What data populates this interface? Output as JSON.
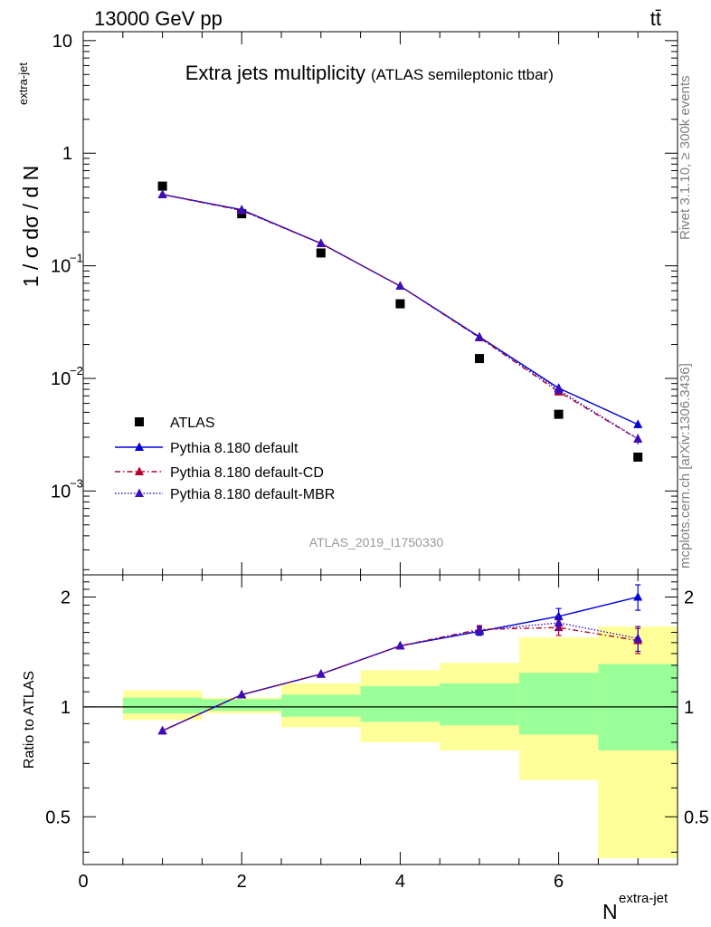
{
  "header": {
    "energy_label": "13000 GeV pp",
    "process_label": "tt̄"
  },
  "side_labels": {
    "rivet": "Rivet 3.1.10, ≥ 300k events",
    "mcplots": "mcplots.cern.ch [arXiv:1306.3436]"
  },
  "analysis_id": "ATLAS_2019_I1750330",
  "chart_data": [
    {
      "id": "main-panel",
      "type": "scatter",
      "y_scale": "log",
      "title": "Extra jets multiplicity",
      "subtitle": "(ATLAS semileptonic ttbar)",
      "ylabel": "1 / σ dσ / d N",
      "ylabel_sup": "extra-jet",
      "xlim": [
        0,
        7.5
      ],
      "ylim": [
        0.00018,
        12
      ],
      "y_ticks": [
        {
          "value": 10,
          "label": "10"
        },
        {
          "value": 1,
          "label": "1"
        },
        {
          "value": 0.1,
          "label": "10",
          "exp": "−1"
        },
        {
          "value": 0.01,
          "label": "10",
          "exp": "−2"
        },
        {
          "value": 0.001,
          "label": "10",
          "exp": "−3"
        }
      ],
      "legend_position": "bottom-left",
      "series": [
        {
          "name": "ATLAS",
          "style": "data",
          "color": "#000000",
          "x": [
            1,
            2,
            3,
            4,
            5,
            6,
            7
          ],
          "y": [
            0.51,
            0.29,
            0.13,
            0.046,
            0.015,
            0.0048,
            0.002
          ]
        },
        {
          "name": "Pythia 8.180 default",
          "style": "solid",
          "color": "#0000dd",
          "x": [
            1,
            2,
            3,
            4,
            5,
            6,
            7
          ],
          "y": [
            0.43,
            0.315,
            0.158,
            0.066,
            0.0234,
            0.0082,
            0.0039
          ],
          "err": [
            0,
            0,
            0,
            0,
            0,
            0.0004,
            0.0003
          ]
        },
        {
          "name": "Pythia 8.180 default-CD",
          "style": "dashdot",
          "color": "#b2002e",
          "x": [
            1,
            2,
            3,
            4,
            5,
            6,
            7
          ],
          "y": [
            0.43,
            0.31,
            0.158,
            0.066,
            0.023,
            0.0076,
            0.0029
          ],
          "err": [
            0,
            0,
            0,
            0,
            0,
            0.0004,
            0.0003
          ]
        },
        {
          "name": "Pythia 8.180 default-MBR",
          "style": "dotted",
          "color": "#3b0dbb",
          "x": [
            1,
            2,
            3,
            4,
            5,
            6,
            7
          ],
          "y": [
            0.43,
            0.312,
            0.158,
            0.066,
            0.0232,
            0.0079,
            0.0029
          ],
          "err": [
            0,
            0,
            0,
            0,
            0,
            0.0004,
            0.0003
          ]
        }
      ]
    },
    {
      "id": "ratio-panel",
      "type": "line",
      "y_scale": "log",
      "ylabel": "Ratio to ATLAS",
      "xlabel": "N",
      "xlabel_sup": "extra-jet",
      "xlim": [
        0,
        7.5
      ],
      "ylim": [
        0.37,
        2.3
      ],
      "x_ticks": [
        0,
        2,
        4,
        6
      ],
      "y_ticks": [
        0.5,
        1,
        2
      ],
      "reference": 1,
      "bands": {
        "x_edges": [
          0.5,
          1.5,
          2.5,
          3.5,
          4.5,
          5.5,
          6.5,
          7.5
        ],
        "stat_low": [
          0.96,
          0.975,
          0.94,
          0.91,
          0.89,
          0.84,
          0.76
        ],
        "stat_high": [
          1.06,
          1.05,
          1.08,
          1.14,
          1.16,
          1.24,
          1.31
        ],
        "total_low": [
          0.92,
          0.96,
          0.88,
          0.8,
          0.76,
          0.63,
          0.385
        ],
        "total_high": [
          1.11,
          1.06,
          1.16,
          1.26,
          1.32,
          1.55,
          1.66
        ],
        "stat_color": "#99ff99",
        "total_color": "#ffff99"
      },
      "series": [
        {
          "name": "Pythia 8.180 default",
          "style": "solid",
          "color": "#0000dd",
          "x": [
            1,
            2,
            3,
            4,
            5,
            6,
            7
          ],
          "y": [
            0.86,
            1.08,
            1.23,
            1.47,
            1.61,
            1.77,
            2.0
          ],
          "err": [
            0.005,
            0.005,
            0.01,
            0.015,
            0.04,
            0.09,
            0.16
          ]
        },
        {
          "name": "Pythia 8.180 default-CD",
          "style": "dashdot",
          "color": "#b2002e",
          "x": [
            1,
            2,
            3,
            4,
            5,
            6,
            7
          ],
          "y": [
            0.86,
            1.08,
            1.23,
            1.47,
            1.63,
            1.65,
            1.52
          ],
          "err": [
            0.005,
            0.005,
            0.01,
            0.015,
            0.04,
            0.08,
            0.12
          ]
        },
        {
          "name": "Pythia 8.180 default-MBR",
          "style": "dotted",
          "color": "#3b0dbb",
          "x": [
            1,
            2,
            3,
            4,
            5,
            6,
            7
          ],
          "y": [
            0.86,
            1.08,
            1.23,
            1.47,
            1.62,
            1.7,
            1.54
          ],
          "err": [
            0.005,
            0.005,
            0.01,
            0.015,
            0.04,
            0.08,
            0.12
          ]
        }
      ]
    }
  ]
}
